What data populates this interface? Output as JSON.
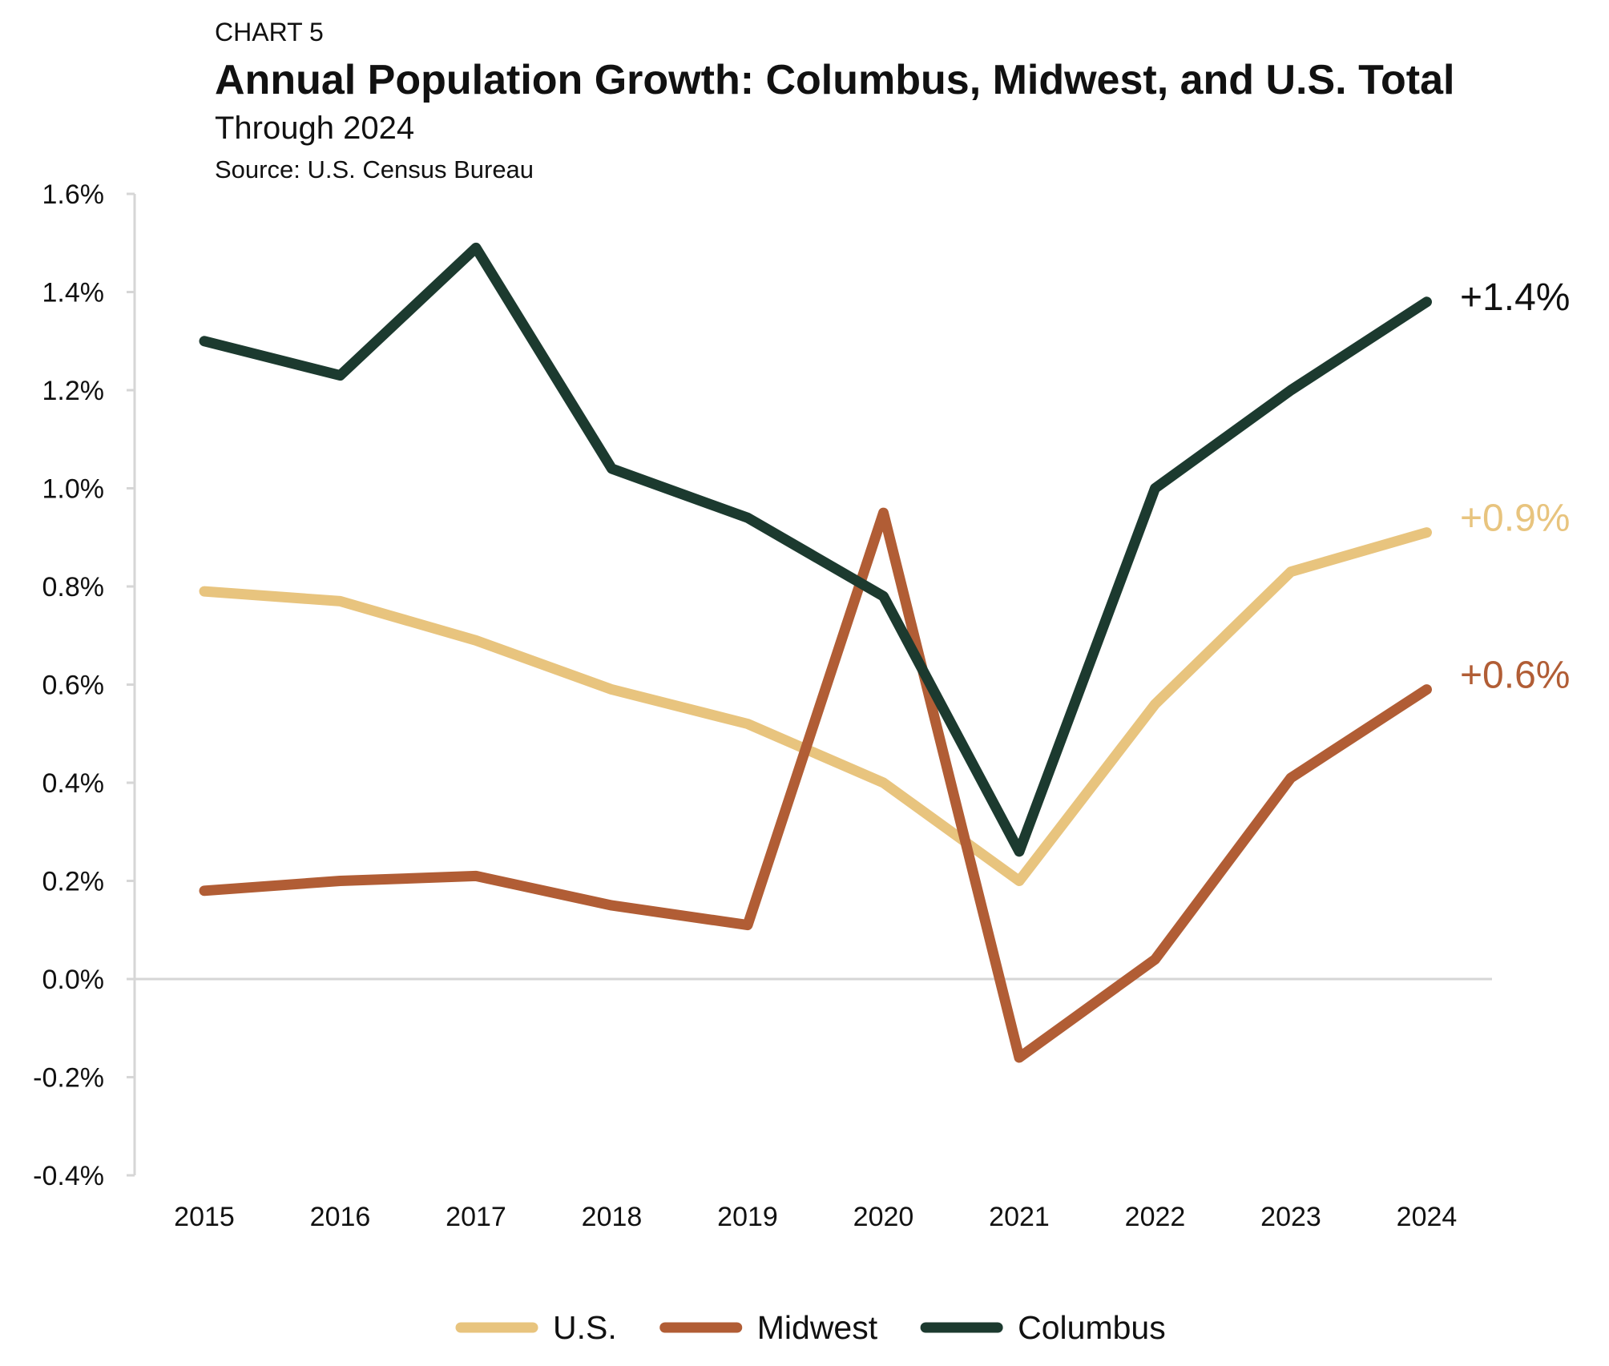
{
  "header": {
    "label": "CHART 5",
    "title": "Annual Population Growth: Columbus, Midwest, and U.S. Total",
    "subtitle": "Through 2024",
    "source": "Source: U.S. Census Bureau"
  },
  "chart_data": {
    "type": "line",
    "title": "Annual Population Growth: Columbus, Midwest, and U.S. Total",
    "subtitle": "Through 2024",
    "x": [
      "2015",
      "2016",
      "2017",
      "2018",
      "2019",
      "2020",
      "2021",
      "2022",
      "2023",
      "2024"
    ],
    "y_ticks": [
      "1.6%",
      "1.4%",
      "1.2%",
      "1.0%",
      "0.8%",
      "0.6%",
      "0.4%",
      "0.2%",
      "0.0%",
      "-0.2%",
      "-0.4%"
    ],
    "ylim": [
      -0.4,
      1.6
    ],
    "y_unit": "%",
    "grid": false,
    "zero_line": true,
    "legend_position": "bottom",
    "series": [
      {
        "name": "U.S.",
        "color": "#E8C47E",
        "values": [
          0.79,
          0.77,
          0.69,
          0.59,
          0.52,
          0.4,
          0.2,
          0.56,
          0.83,
          0.91
        ],
        "end_label": "+0.9%"
      },
      {
        "name": "Midwest",
        "color": "#B15D35",
        "values": [
          0.18,
          0.2,
          0.21,
          0.15,
          0.11,
          0.95,
          -0.16,
          0.04,
          0.41,
          0.59
        ],
        "end_label": "+0.6%"
      },
      {
        "name": "Columbus",
        "color": "#1C3A2F",
        "values": [
          1.3,
          1.23,
          1.49,
          1.04,
          0.94,
          0.78,
          0.26,
          1.0,
          1.2,
          1.38
        ],
        "end_label": "+1.4%"
      }
    ]
  }
}
